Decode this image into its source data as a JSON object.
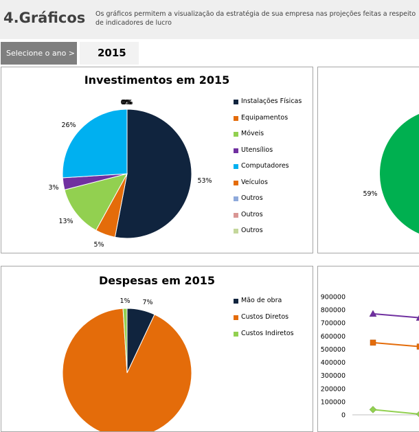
{
  "header": {
    "title": "4.Gráficos",
    "description": "Os gráficos permitem a visualização da estratégia de sua empresa nas projeções feitas a respeito de indicadores de lucro"
  },
  "year_selector": {
    "label": "Selecione o ano >",
    "value": "2015"
  },
  "colors": {
    "Instalações Físicas": "#10243e",
    "Equipamentos": "#e46c0a",
    "Móveis": "#92d050",
    "Utensílios": "#7030a0",
    "Computadores": "#00b0f0",
    "Veículos": "#e46c0a",
    "Outros_1": "#8ea9db",
    "Outros_2": "#d99694",
    "Outros_3": "#c4d79b",
    "green_pie": "#00b050",
    "purple_line": "#7030a0",
    "orange_line": "#e46c0a",
    "green_line": "#92d050"
  },
  "chart_data": [
    {
      "type": "pie",
      "title": "Investimentos em 2015",
      "categories": [
        "Instalações Físicas",
        "Equipamentos",
        "Móveis",
        "Utensílios",
        "Computadores",
        "Veículos",
        "Outros",
        "Outros",
        "Outros"
      ],
      "values": [
        53,
        5,
        13,
        3,
        26,
        0,
        0,
        0,
        0
      ],
      "data_labels": [
        "53%",
        "5%",
        "13%",
        "3%",
        "26%",
        "0%",
        "0%",
        "0%",
        "0%"
      ],
      "colors": [
        "#10243e",
        "#e46c0a",
        "#92d050",
        "#7030a0",
        "#00b0f0",
        "#e46c0a",
        "#8ea9db",
        "#d99694",
        "#c4d79b"
      ],
      "legend": "right"
    },
    {
      "type": "pie",
      "title": "",
      "visible_labels": [
        "59%"
      ],
      "visible_values": [
        59
      ],
      "colors": [
        "#00b050"
      ]
    },
    {
      "type": "pie",
      "title": "Despesas em 2015",
      "categories": [
        "Mão de obra",
        "Custos Diretos",
        "Custos Indiretos"
      ],
      "values": [
        7,
        92,
        1
      ],
      "data_labels": [
        "7%",
        "",
        "1%"
      ],
      "colors": [
        "#10243e",
        "#e46c0a",
        "#92d050"
      ],
      "legend": "right"
    },
    {
      "type": "line",
      "y_ticks": [
        "900000",
        "800000",
        "700000",
        "600000",
        "500000",
        "400000",
        "300000",
        "200000",
        "100000",
        "0"
      ],
      "ylim": [
        0,
        900000
      ],
      "series": [
        {
          "color": "#7030a0",
          "marker": "triangle",
          "values": [
            770000,
            740000
          ]
        },
        {
          "color": "#e46c0a",
          "marker": "square",
          "values": [
            550000,
            520000
          ]
        },
        {
          "color": "#92d050",
          "marker": "diamond",
          "values": [
            40000,
            5000
          ]
        }
      ]
    }
  ]
}
